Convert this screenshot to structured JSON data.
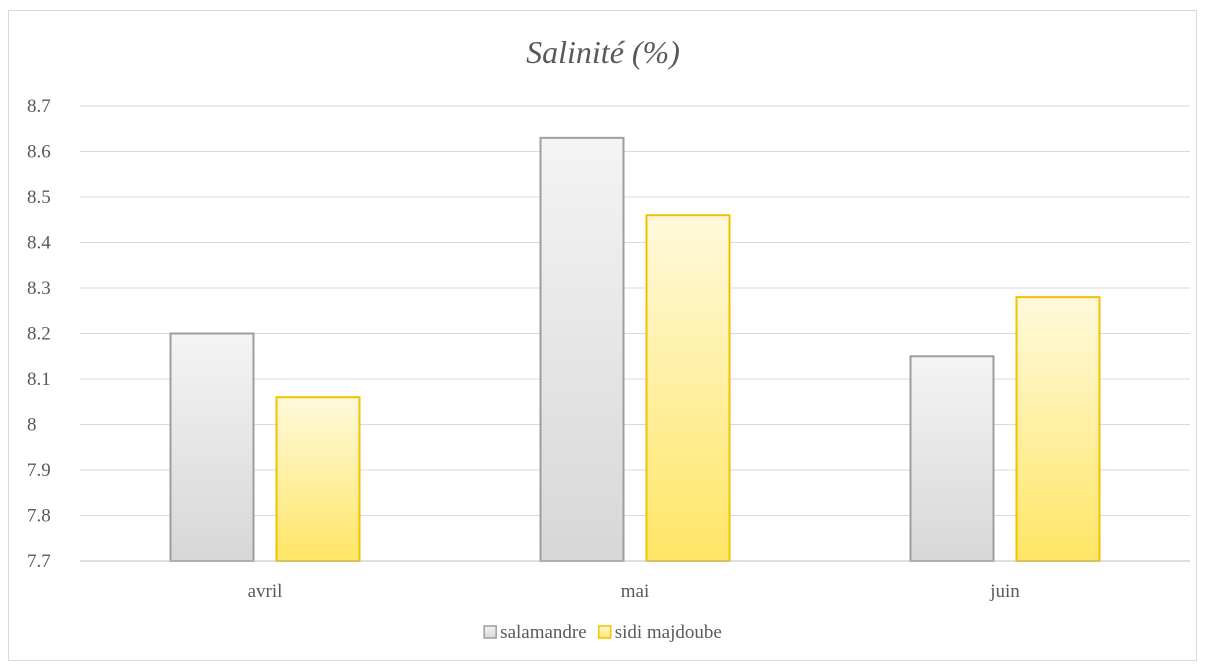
{
  "chart_data": {
    "type": "bar",
    "title": "Salinité (%)",
    "xlabel": "",
    "ylabel": "",
    "categories": [
      "avril",
      "mai",
      "juin"
    ],
    "series": [
      {
        "name": "salamandre",
        "values": [
          8.2,
          8.63,
          8.15
        ],
        "stroke": "#9e9e9e",
        "fill_top": "#f4f4f4",
        "fill_bottom": "#d7d7d7"
      },
      {
        "name": "sidi majdoube",
        "values": [
          8.06,
          8.46,
          8.28
        ],
        "stroke": "#f2c200",
        "fill_top": "#fff9dc",
        "fill_bottom": "#ffe666"
      }
    ],
    "ylim": [
      7.7,
      8.7
    ],
    "yticks": [
      "7.7",
      "7.8",
      "7.9",
      "8",
      "8.1",
      "8.2",
      "8.3",
      "8.4",
      "8.5",
      "8.6",
      "8.7"
    ],
    "grid": true,
    "legend": "bottom",
    "colors": {
      "gridline": "#d9d9d9",
      "axis": "#bfbfbf",
      "text": "#595959"
    }
  }
}
